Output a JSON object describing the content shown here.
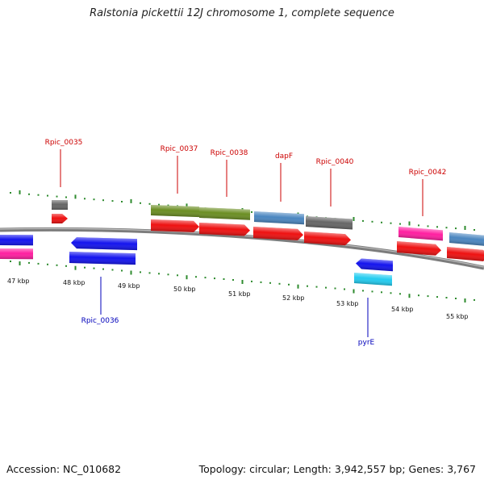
{
  "title": "Ralstonia pickettii 12J chromosome 1, complete sequence",
  "footer": {
    "accession": "Accession: NC_010682",
    "topology": "Topology: circular; Length: 3,942,557 bp; Genes: 3,767"
  },
  "colors": {
    "backbone": "#7a7a7a",
    "tick": "#2e8b2e",
    "label_forward": "#cc0000",
    "label_reverse": "#0000bb",
    "cds": "#ee1111",
    "gene_pink": "#ff1fa0",
    "gene_blue": "#1414ee",
    "gene_grey": "#666666",
    "gene_olive": "#6b8e23",
    "gene_steelblue": "#4a86c0",
    "gene_cyan": "#22ccf0"
  },
  "kbp_labels": [
    "47 kbp",
    "48 kbp",
    "49 kbp",
    "50 kbp",
    "51 kbp",
    "52 kbp",
    "53 kbp",
    "54 kbp",
    "55 kbp"
  ],
  "gene_labels": [
    {
      "name": "Rpic_0035",
      "strand": "forward"
    },
    {
      "name": "Rpic_0036",
      "strand": "reverse"
    },
    {
      "name": "Rpic_0037",
      "strand": "forward"
    },
    {
      "name": "Rpic_0038",
      "strand": "forward"
    },
    {
      "name": "dapF",
      "strand": "forward"
    },
    {
      "name": "Rpic_0040",
      "strand": "forward"
    },
    {
      "name": "Rpic_0042",
      "strand": "forward"
    },
    {
      "name": "pyrE",
      "strand": "reverse"
    }
  ]
}
